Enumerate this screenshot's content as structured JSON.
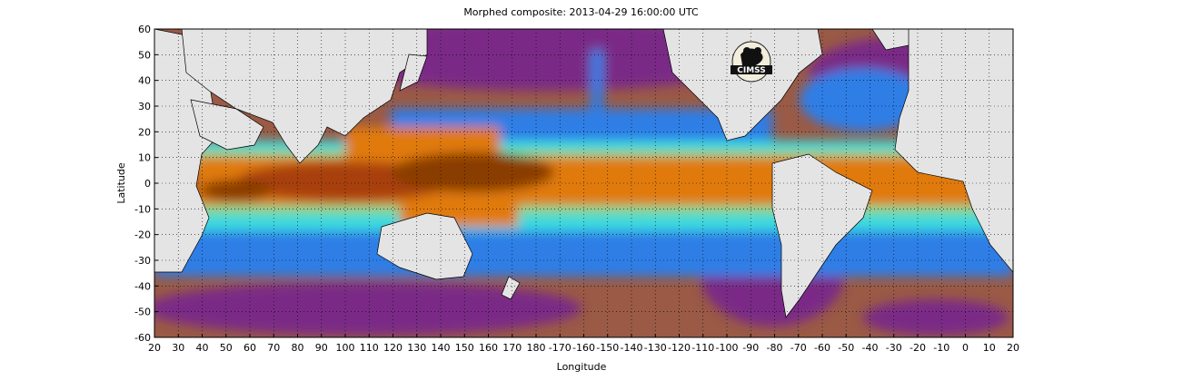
{
  "title": "Morphed composite: 2013-04-29 16:00:00 UTC",
  "x_axis": {
    "label": "Longitude",
    "ticks": [
      "20",
      "30",
      "40",
      "50",
      "60",
      "70",
      "80",
      "90",
      "100",
      "110",
      "120",
      "130",
      "140",
      "150",
      "160",
      "170",
      "180",
      "-170",
      "-160",
      "-150",
      "-140",
      "-130",
      "-120",
      "-110",
      "-100",
      "-90",
      "-80",
      "-70",
      "-60",
      "-50",
      "-40",
      "-30",
      "-20",
      "-10",
      "0",
      "10",
      "20"
    ]
  },
  "y_axis": {
    "label": "Latitude",
    "ticks": [
      "60",
      "50",
      "40",
      "30",
      "20",
      "10",
      "0",
      "-10",
      "-20",
      "-30",
      "-40",
      "-50",
      "-60"
    ]
  },
  "map": {
    "type": "precipitable water composite",
    "lon_range": [
      20,
      380
    ],
    "lat_range": [
      -60,
      60
    ],
    "grid": "dotted",
    "logo": "CIMSS",
    "colors": {
      "dry": "#7a2c86",
      "mid_dry": "#a8653a",
      "moist_blue": "#2f7ee6",
      "moist_cyan": "#3ad8e0",
      "moist_green": "#8fe07a",
      "wet_orange": "#e07a10",
      "very_wet": "#8a3d05",
      "land": "#e4e4e4"
    }
  }
}
